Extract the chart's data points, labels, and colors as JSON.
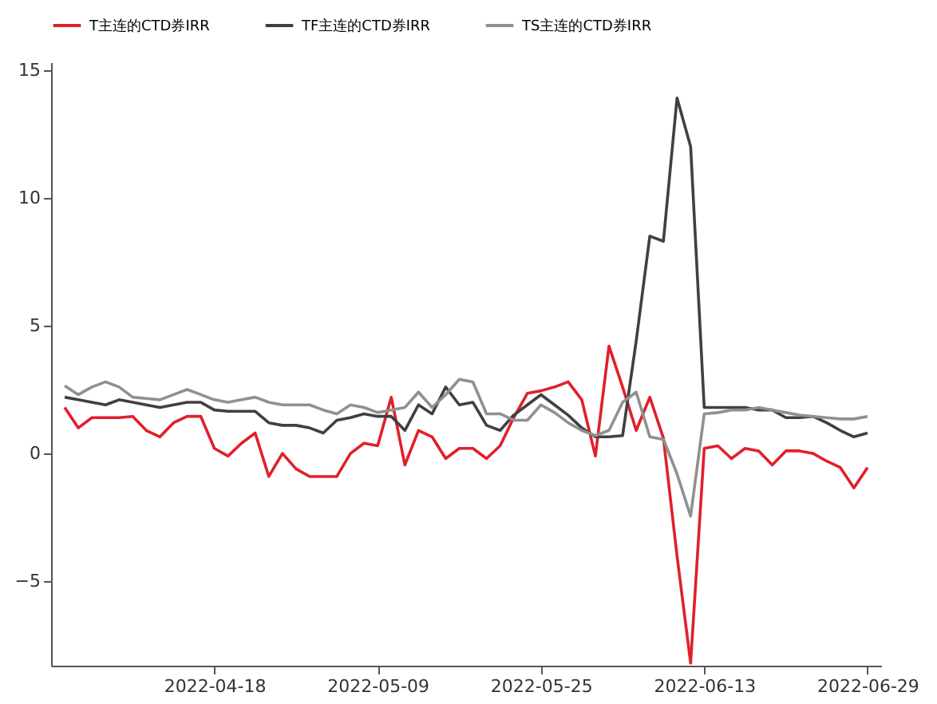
{
  "chart_data": {
    "type": "line",
    "categories": [
      null,
      null,
      null,
      null,
      null,
      null,
      null,
      null,
      null,
      null,
      null,
      "2022-04-18",
      null,
      null,
      null,
      null,
      null,
      null,
      null,
      null,
      null,
      null,
      null,
      "2022-05-09",
      null,
      null,
      null,
      null,
      null,
      null,
      null,
      null,
      null,
      null,
      null,
      "2022-05-25",
      null,
      null,
      null,
      null,
      null,
      null,
      null,
      null,
      null,
      null,
      null,
      "2022-06-13",
      null,
      null,
      null,
      null,
      null,
      null,
      null,
      null,
      null,
      null,
      null,
      "2022-06-29"
    ],
    "series": [
      {
        "name": "T主连的CTD券IRR",
        "color": "#e0202a",
        "values": [
          1.8,
          1.0,
          1.4,
          1.4,
          1.4,
          1.45,
          0.9,
          0.65,
          1.2,
          1.45,
          1.45,
          0.2,
          -0.1,
          0.4,
          0.8,
          -0.9,
          0,
          -0.6,
          -0.9,
          -0.9,
          -0.9,
          0,
          0.4,
          0.3,
          2.2,
          -0.45,
          0.9,
          0.65,
          -0.2,
          0.2,
          0.2,
          -0.2,
          0.3,
          1.4,
          2.35,
          2.45,
          2.6,
          2.8,
          2.1,
          -0.1,
          4.2,
          2.6,
          0.9,
          2.2,
          0.6,
          -4,
          -8.2,
          0.2,
          0.3,
          -0.2,
          0.2,
          0.1,
          -0.45,
          0.1,
          0.1,
          0,
          -0.3,
          -0.55,
          -1.35,
          -0.55
        ]
      },
      {
        "name": "TF主连的CTD券IRR",
        "color": "#404040",
        "values": [
          2.2,
          2.1,
          2.0,
          1.9,
          2.1,
          2.0,
          1.9,
          1.8,
          1.9,
          2.0,
          2.0,
          1.7,
          1.65,
          1.65,
          1.65,
          1.2,
          1.1,
          1.1,
          1.0,
          0.8,
          1.3,
          1.4,
          1.55,
          1.45,
          1.45,
          0.9,
          1.9,
          1.55,
          2.6,
          1.9,
          2.0,
          1.1,
          0.9,
          1.5,
          1.9,
          2.3,
          1.9,
          1.5,
          1.0,
          0.65,
          0.65,
          0.7,
          4.4,
          8.5,
          8.3,
          13.9,
          12.0,
          1.8,
          1.8,
          1.8,
          1.8,
          1.7,
          1.7,
          1.4,
          1.4,
          1.45,
          1.2,
          0.9,
          0.65,
          0.8
        ]
      },
      {
        "name": "TS主连的CTD券IRR",
        "color": "#909090",
        "values": [
          2.65,
          2.3,
          2.6,
          2.8,
          2.6,
          2.2,
          2.15,
          2.1,
          2.3,
          2.5,
          2.3,
          2.1,
          2.0,
          2.1,
          2.2,
          2.0,
          1.9,
          1.9,
          1.9,
          1.7,
          1.55,
          1.9,
          1.8,
          1.6,
          1.7,
          1.8,
          2.4,
          1.8,
          2.3,
          2.9,
          2.8,
          1.55,
          1.55,
          1.3,
          1.3,
          1.9,
          1.6,
          1.2,
          0.9,
          0.7,
          0.9,
          2.0,
          2.4,
          0.65,
          0.55,
          -0.8,
          -2.45,
          1.55,
          1.6,
          1.7,
          1.7,
          1.8,
          1.7,
          1.6,
          1.5,
          1.45,
          1.4,
          1.35,
          1.35,
          1.45
        ]
      }
    ],
    "ylim": [
      -8.3,
      15.3
    ],
    "yticks": [
      -5,
      0,
      5,
      10,
      15
    ],
    "legend": "top",
    "grid": false,
    "line_style": "solid",
    "marker": "none"
  }
}
